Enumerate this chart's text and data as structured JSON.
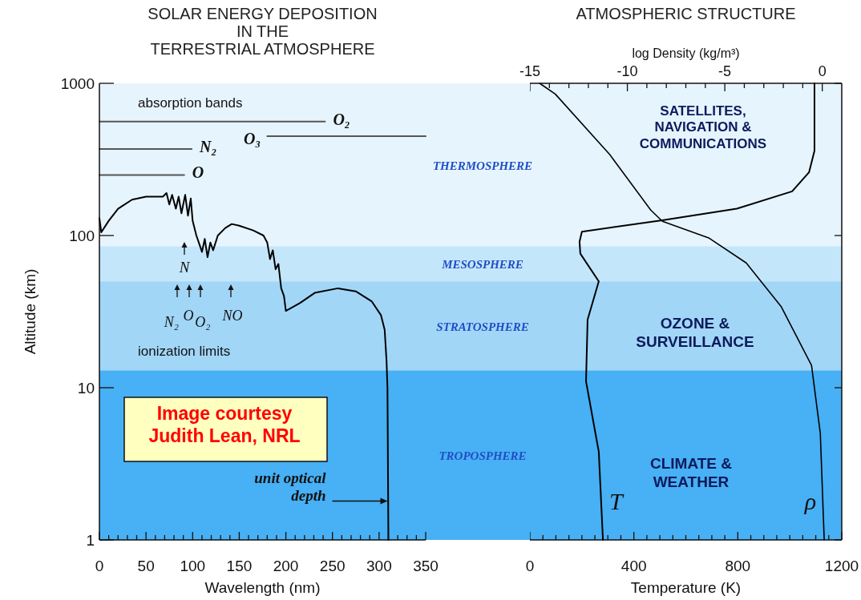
{
  "chart_data": [
    {
      "type": "line",
      "title": "SOLAR ENERGY DEPOSITION\nIN THE\nTERRESTRIAL ATMOSPHERE",
      "xlabel": "Wavelength (nm)",
      "ylabel": "Altitude (km)",
      "log": "y",
      "xlim": [
        0,
        350
      ],
      "ylim": [
        1,
        1000
      ],
      "xticks": [
        0,
        {
          "value": 10,
          "label": null
        },
        {
          "value": 20,
          "label": null
        },
        {
          "value": 30,
          "label": null
        },
        {
          "value": 40,
          "label": null
        },
        50,
        {
          "value": 60,
          "label": null
        },
        {
          "value": 70,
          "label": null
        },
        {
          "value": 80,
          "label": null
        },
        {
          "value": 90,
          "label": null
        },
        100,
        {
          "value": 110,
          "label": null
        },
        {
          "value": 120,
          "label": null
        },
        {
          "value": 130,
          "label": null
        },
        {
          "value": 140,
          "label": null
        },
        150,
        {
          "value": 160,
          "label": null
        },
        {
          "value": 170,
          "label": null
        },
        {
          "value": 180,
          "label": null
        },
        {
          "value": 190,
          "label": null
        },
        200,
        {
          "value": 210,
          "label": null
        },
        {
          "value": 220,
          "label": null
        },
        {
          "value": 230,
          "label": null
        },
        {
          "value": 240,
          "label": null
        },
        250,
        {
          "value": 260,
          "label": null
        },
        {
          "value": 270,
          "label": null
        },
        {
          "value": 280,
          "label": null
        },
        {
          "value": 290,
          "label": null
        },
        300,
        {
          "value": 310,
          "label": null
        },
        {
          "value": 320,
          "label": null
        },
        {
          "value": 330,
          "label": null
        },
        {
          "value": 340,
          "label": null
        },
        350
      ],
      "yticks": [
        1,
        10,
        100,
        1000
      ],
      "bands": [
        {
          "axis": "y",
          "from": 85,
          "to": 1000,
          "label": "THERMOSPHERE",
          "color": "#e6f4fd"
        },
        {
          "axis": "y",
          "from": 50,
          "to": 85,
          "label": "MESOSPHERE",
          "color": "#c4e6fb"
        },
        {
          "axis": "y",
          "from": 13,
          "to": 50,
          "label": "STRATOSPHERE",
          "color": "#a1d6f7"
        },
        {
          "axis": "y",
          "from": 1,
          "to": 13,
          "label": "TROPOSPHERE",
          "color": "#48b0f4"
        }
      ],
      "series": [
        {
          "color": "#000000",
          "x": [
            0,
            2,
            10,
            20,
            35,
            50,
            68,
            72,
            75,
            78,
            82,
            85,
            88,
            92,
            95,
            98,
            100,
            104,
            108,
            110,
            113,
            116,
            119,
            122,
            127,
            135,
            142,
            150,
            165,
            176,
            180,
            183,
            186,
            189,
            192,
            195,
            198,
            200,
            215,
            231,
            256,
            275,
            292,
            302,
            306,
            308,
            309,
            310
          ],
          "values": [
            130,
            105,
            125,
            150,
            172,
            180,
            180,
            190,
            160,
            185,
            150,
            180,
            140,
            185,
            135,
            175,
            125,
            100,
            85,
            78,
            95,
            72,
            90,
            80,
            100,
            112,
            119,
            116,
            108,
            100,
            90,
            70,
            80,
            60,
            65,
            45,
            40,
            32,
            36,
            42,
            45,
            43,
            37,
            30,
            24,
            15,
            10,
            1
          ]
        },
        {
          "name": "O₂",
          "color": "#555555",
          "x": [
            0,
            242
          ],
          "values": [
            560,
            560
          ]
        },
        {
          "name": "O₃",
          "color": "#555555",
          "x": [
            350,
            180
          ],
          "values": [
            450,
            450
          ]
        },
        {
          "name": "N₂",
          "color": "#555555",
          "x": [
            0,
            99
          ],
          "values": [
            370,
            370
          ]
        },
        {
          "name": "O",
          "color": "#555555",
          "x": [
            0,
            91
          ],
          "values": [
            250,
            250
          ]
        }
      ],
      "annotations": [
        "absorption bands",
        "ionization limits",
        "Image courtesy\nJudith Lean, NRL",
        "N",
        "N₂",
        "O",
        "O₂",
        "NO",
        {
          "text": "unit optical\ndepth",
          "x": 310,
          "y": 1.8
        }
      ]
    },
    {
      "type": "line",
      "title": "ATMOSPHERIC STRUCTURE",
      "xlabel": "Temperature (K)",
      "x2label": "log Density (kg/m³)",
      "log": "y",
      "tick_labels": "x",
      "xlim": [
        0,
        1200
      ],
      "x2lim": [
        -15,
        1
      ],
      "ylim": [
        1,
        1000
      ],
      "xticks": [
        0,
        {
          "value": 50,
          "label": null
        },
        {
          "value": 100,
          "label": null
        },
        {
          "value": 150,
          "label": null
        },
        {
          "value": 200,
          "label": null
        },
        {
          "value": 250,
          "label": null
        },
        {
          "value": 300,
          "label": null
        },
        {
          "value": 350,
          "label": null
        },
        400,
        {
          "value": 450,
          "label": null
        },
        {
          "value": 500,
          "label": null
        },
        {
          "value": 550,
          "label": null
        },
        {
          "value": 600,
          "label": null
        },
        {
          "value": 650,
          "label": null
        },
        {
          "value": 700,
          "label": null
        },
        {
          "value": 750,
          "label": null
        },
        800,
        {
          "value": 850,
          "label": null
        },
        {
          "value": 900,
          "label": null
        },
        {
          "value": 950,
          "label": null
        },
        {
          "value": 1000,
          "label": null
        },
        {
          "value": 1050,
          "label": null
        },
        {
          "value": 1100,
          "label": null
        },
        {
          "value": 1150,
          "label": null
        },
        1200
      ],
      "x2ticks": [
        -15,
        {
          "value": -14,
          "label": null
        },
        {
          "value": -13,
          "label": null
        },
        {
          "value": -12,
          "label": null
        },
        {
          "value": -11,
          "label": null
        },
        -10,
        {
          "value": -9,
          "label": null
        },
        {
          "value": -8,
          "label": null
        },
        {
          "value": -7,
          "label": null
        },
        {
          "value": -6,
          "label": null
        },
        -5,
        {
          "value": -4,
          "label": null
        },
        {
          "value": -3,
          "label": null
        },
        {
          "value": -2,
          "label": null
        },
        {
          "value": -1,
          "label": null
        },
        0
      ],
      "yticks": [
        {
          "value": 1,
          "label": null
        },
        {
          "value": 10,
          "label": null
        },
        {
          "value": 100,
          "label": null
        },
        {
          "value": 1000,
          "label": null
        }
      ],
      "bands": [
        {
          "axis": "y",
          "from": 85,
          "to": 1000,
          "color": "#e6f4fd"
        },
        {
          "axis": "y",
          "from": 50,
          "to": 85,
          "color": "#c4e6fb"
        },
        {
          "axis": "y",
          "from": 13,
          "to": 50,
          "color": "#a1d6f7"
        },
        {
          "axis": "y",
          "from": 1,
          "to": 13,
          "color": "#48b0f4"
        }
      ],
      "series": [
        {
          "name": "T",
          "color": "#000000",
          "x": [
            1095,
            1095,
            1074,
            1009,
            796,
            509,
            200,
            191,
            194,
            265,
            222,
            216,
            265,
            281
          ],
          "values": [
            1000,
            360,
            260,
            195,
            150,
            126,
            106,
            91,
            76,
            50,
            28,
            11,
            3.8,
            1
          ]
        },
        {
          "name": "ρ",
          "color": "#000000",
          "axis": "x2",
          "x": [
            -14.5,
            -13.7,
            -10.9,
            -8.8,
            -8.2,
            -5.8,
            -3.9,
            -2.1,
            -0.55,
            -0.1,
            0.1
          ],
          "values": [
            1000,
            850,
            340,
            147,
            124,
            96,
            66,
            34,
            14,
            5,
            1
          ]
        }
      ],
      "annotations": [
        "SATELLITES,\nNAVIGATION &\nCOMMUNICATIONS",
        "OZONE &\nSURVEILLANCE",
        "CLIMATE &\nWEATHER"
      ]
    }
  ]
}
